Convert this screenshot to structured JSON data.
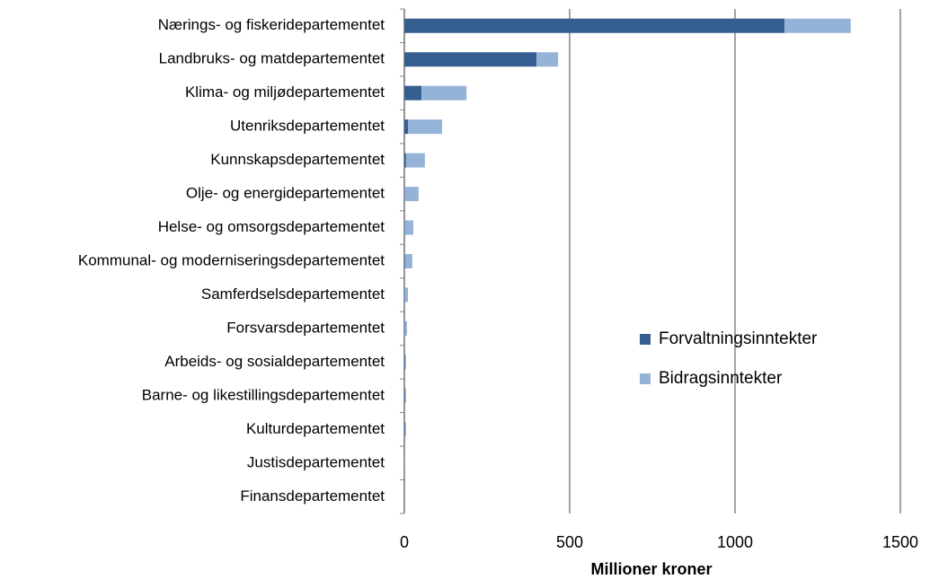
{
  "chart_data": {
    "type": "stacked_barh",
    "x_label": "Millioner kroner",
    "categories": [
      "Nærings- og fiskeridepartementet",
      "Landbruks- og matdepartementet",
      "Klima- og miljødepartementet",
      "Utenriksdepartementet",
      "Kunnskapsdepartementet",
      "Olje- og energidepartementet",
      "Helse- og omsorgsdepartementet",
      "Kommunal- og moderniseringsdepartementet",
      "Samferdselsdepartementet",
      "Forsvarsdepartementet",
      "Arbeids- og sosialdepartementet",
      "Barne- og likestillingsdepartementet",
      "Kulturdepartementet",
      "Justisdepartementet",
      "Finansdepartementet"
    ],
    "series": [
      {
        "name": "Forvaltningsinntekter",
        "color": "#355f91",
        "values": [
          1150,
          400,
          52,
          11,
          5,
          1,
          1,
          2,
          1,
          1,
          2,
          2,
          2,
          0,
          0
        ]
      },
      {
        "name": "Bidragsinntekter",
        "color": "#95b3d7",
        "values": [
          200,
          65,
          136,
          103,
          57,
          42,
          26,
          22,
          10,
          7,
          3,
          3,
          3,
          1,
          0
        ]
      }
    ],
    "xlim": [
      0,
      1500
    ],
    "xticks": [
      0,
      500,
      1000,
      1500
    ],
    "grid": true,
    "legend_position": "right"
  }
}
